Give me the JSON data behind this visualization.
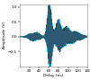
{
  "title": "",
  "xlabel": "Delay (ns)",
  "ylabel": "Amplitude (V)",
  "xlim": [
    0,
    140
  ],
  "ylim": [
    -1.0,
    1.1
  ],
  "yticks": [
    -0.5,
    0,
    0.5,
    1.0
  ],
  "xticks": [
    20,
    40,
    60,
    80,
    100,
    120,
    140
  ],
  "color_cyan": "#00ccff",
  "color_dark": "#222222",
  "color_mid": "#336688",
  "background": "#ffffff",
  "linewidth_cyan": 0.9,
  "linewidth_dark": 0.55,
  "seed": 42,
  "n_points": 2000
}
